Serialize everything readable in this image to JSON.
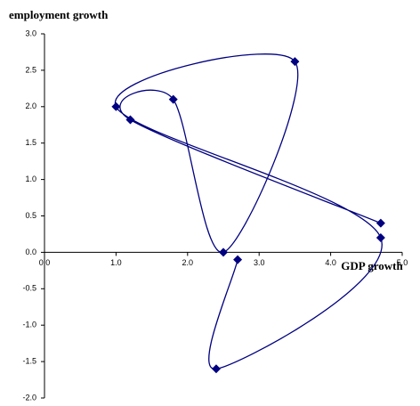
{
  "chart_data": {
    "type": "line",
    "y_label": "employment growth",
    "x_label": "GDP growth",
    "x": [
      2.7,
      2.4,
      4.7,
      1.0,
      3.5,
      2.5,
      1.8,
      1.2,
      4.7
    ],
    "series": [
      {
        "color": "#000080",
        "values": [
          -0.1,
          -1.6,
          0.2,
          2.0,
          2.62,
          0.0,
          2.1,
          1.82,
          0.4
        ]
      }
    ],
    "xlim": [
      0,
      5
    ],
    "ylim": [
      -2,
      3
    ],
    "xticks": [
      {
        "value": 0,
        "label": "0.0"
      },
      {
        "value": 1,
        "label": "1.0"
      },
      {
        "value": 2,
        "label": "2.0"
      },
      {
        "value": 3,
        "label": "3.0"
      },
      {
        "value": 4,
        "label": "4.0"
      },
      {
        "value": 5,
        "label": "5.0"
      }
    ],
    "yticks": [
      {
        "value": -2,
        "label": "-2.0"
      },
      {
        "value": -1.5,
        "label": "-1.5"
      },
      {
        "value": -1,
        "label": "-1.0"
      },
      {
        "value": -0.5,
        "label": "-0.5"
      },
      {
        "value": 0,
        "label": "0.0"
      },
      {
        "value": 0.5,
        "label": "0.5"
      },
      {
        "value": 1,
        "label": "1.0"
      },
      {
        "value": 1.5,
        "label": "1.5"
      },
      {
        "value": 2,
        "label": "2.0"
      },
      {
        "value": 2.5,
        "label": "2.5"
      },
      {
        "value": 3,
        "label": "3.0"
      }
    ],
    "smooth": true,
    "marker": "diamond"
  }
}
